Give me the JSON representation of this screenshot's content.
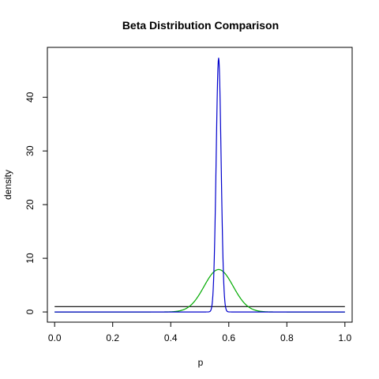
{
  "chart_data": {
    "type": "line",
    "title": "Beta Distribution Comparison",
    "xlabel": "p",
    "ylabel": "density",
    "xlim": [
      -0.025,
      1.025
    ],
    "ylim": [
      -1.9,
      49.3
    ],
    "x_ticks": [
      0.0,
      0.2,
      0.4,
      0.6,
      0.8,
      1.0
    ],
    "x_tick_labels": [
      "0.0",
      "0.2",
      "0.4",
      "0.6",
      "0.8",
      "1.0"
    ],
    "y_ticks": [
      0,
      10,
      20,
      30,
      40
    ],
    "y_tick_labels": [
      "0",
      "10",
      "20",
      "30",
      "40"
    ],
    "grid": false,
    "series": [
      {
        "color": "#000000",
        "shape": "constant",
        "value": 1,
        "x_range": [
          0.0,
          1.0
        ]
      },
      {
        "color": "#00aa00",
        "shape": "bell",
        "peak_x": 0.565,
        "peak_y": 7.9,
        "spread": 0.05,
        "x_range": [
          0.0,
          1.0
        ]
      },
      {
        "color": "#0000cc",
        "shape": "bell",
        "peak_x": 0.565,
        "peak_y": 47.3,
        "spread": 0.0085,
        "x_range": [
          0.0,
          1.0
        ]
      }
    ]
  }
}
